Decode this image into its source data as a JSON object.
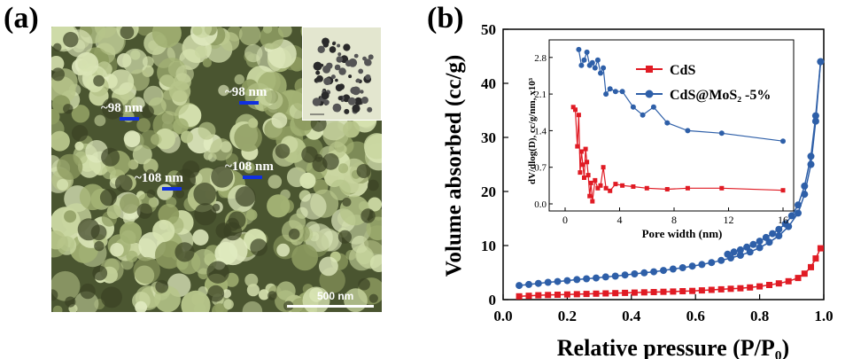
{
  "panel_a": {
    "label": "(a)",
    "annotations": [
      "~98 nm",
      "~98 nm",
      "~108 nm",
      "~108 nm"
    ],
    "scale_bar": "500 nm",
    "image_tint": "#c9d6a0"
  },
  "panel_b": {
    "label": "(b)"
  },
  "chart_data": [
    {
      "type": "line",
      "xlabel": "Relative pressure (P/P₀)",
      "ylabel": "Volume absorbed (cc/g)",
      "xlim": [
        0.0,
        1.0
      ],
      "ylim": [
        0,
        50
      ],
      "xticks": [
        "0.0",
        "0.2",
        "0.4",
        "0.6",
        "0.8",
        "1.0"
      ],
      "yticks": [
        "0",
        "10",
        "20",
        "30",
        "40",
        "50"
      ],
      "legend_position": "top-right of inset",
      "series": [
        {
          "name": "CdS",
          "color": "#e01b24",
          "marker": "square",
          "points": [
            [
              0.05,
              0.6
            ],
            [
              0.08,
              0.7
            ],
            [
              0.11,
              0.8
            ],
            [
              0.14,
              0.85
            ],
            [
              0.17,
              0.9
            ],
            [
              0.2,
              0.95
            ],
            [
              0.23,
              1.0
            ],
            [
              0.26,
              1.05
            ],
            [
              0.29,
              1.1
            ],
            [
              0.32,
              1.15
            ],
            [
              0.35,
              1.2
            ],
            [
              0.38,
              1.25
            ],
            [
              0.41,
              1.3
            ],
            [
              0.44,
              1.35
            ],
            [
              0.47,
              1.4
            ],
            [
              0.5,
              1.45
            ],
            [
              0.53,
              1.5
            ],
            [
              0.56,
              1.55
            ],
            [
              0.59,
              1.6
            ],
            [
              0.62,
              1.7
            ],
            [
              0.65,
              1.8
            ],
            [
              0.68,
              1.9
            ],
            [
              0.71,
              2.0
            ],
            [
              0.74,
              2.1
            ],
            [
              0.77,
              2.25
            ],
            [
              0.8,
              2.45
            ],
            [
              0.83,
              2.7
            ],
            [
              0.86,
              3.0
            ],
            [
              0.89,
              3.4
            ],
            [
              0.92,
              4.0
            ],
            [
              0.94,
              4.8
            ],
            [
              0.96,
              6.0
            ],
            [
              0.975,
              7.6
            ],
            [
              0.99,
              9.5
            ]
          ]
        },
        {
          "name": "CdS@MoS₂ -5%",
          "color": "#2e5fa8",
          "marker": "circle",
          "points": [
            [
              0.05,
              2.6
            ],
            [
              0.08,
              2.8
            ],
            [
              0.11,
              3.0
            ],
            [
              0.14,
              3.2
            ],
            [
              0.17,
              3.35
            ],
            [
              0.2,
              3.5
            ],
            [
              0.23,
              3.7
            ],
            [
              0.26,
              3.85
            ],
            [
              0.29,
              4.0
            ],
            [
              0.32,
              4.2
            ],
            [
              0.35,
              4.35
            ],
            [
              0.38,
              4.55
            ],
            [
              0.41,
              4.75
            ],
            [
              0.44,
              4.95
            ],
            [
              0.47,
              5.15
            ],
            [
              0.5,
              5.4
            ],
            [
              0.53,
              5.65
            ],
            [
              0.56,
              5.9
            ],
            [
              0.59,
              6.2
            ],
            [
              0.62,
              6.5
            ],
            [
              0.65,
              6.85
            ],
            [
              0.68,
              7.25
            ],
            [
              0.71,
              7.7
            ],
            [
              0.74,
              8.2
            ],
            [
              0.77,
              8.8
            ],
            [
              0.8,
              9.6
            ],
            [
              0.83,
              10.6
            ],
            [
              0.86,
              11.8
            ],
            [
              0.89,
              13.5
            ],
            [
              0.92,
              16.0
            ],
            [
              0.94,
              19.5
            ],
            [
              0.96,
              25.0
            ],
            [
              0.975,
              33.0
            ],
            [
              0.99,
              44.0
            ]
          ],
          "desorption_points": [
            [
              0.99,
              44.0
            ],
            [
              0.975,
              34.0
            ],
            [
              0.96,
              26.5
            ],
            [
              0.94,
              21.0
            ],
            [
              0.92,
              17.5
            ],
            [
              0.9,
              15.5
            ],
            [
              0.88,
              14.0
            ],
            [
              0.86,
              13.0
            ],
            [
              0.84,
              12.2
            ],
            [
              0.82,
              11.5
            ],
            [
              0.8,
              10.8
            ],
            [
              0.78,
              10.2
            ],
            [
              0.76,
              9.7
            ],
            [
              0.74,
              9.2
            ],
            [
              0.72,
              8.8
            ],
            [
              0.7,
              8.4
            ]
          ]
        }
      ]
    },
    {
      "type": "line",
      "xlabel": "Pore width (nm)",
      "ylabel": "dV/dlog(D), cc/g/nm, x10³",
      "xlim": [
        0,
        16
      ],
      "ylim": [
        0.0,
        3.0
      ],
      "xticks": [
        "0",
        "4",
        "8",
        "12",
        "16"
      ],
      "yticks": [
        "0.0",
        "0.7",
        "1.4",
        "2.1",
        "2.8"
      ],
      "series": [
        {
          "name": "CdS",
          "color": "#e01b24",
          "marker": "square",
          "points": [
            [
              0.6,
              1.85
            ],
            [
              0.75,
              1.8
            ],
            [
              0.9,
              1.1
            ],
            [
              1.0,
              1.7
            ],
            [
              1.1,
              0.6
            ],
            [
              1.2,
              1.0
            ],
            [
              1.3,
              0.75
            ],
            [
              1.4,
              0.5
            ],
            [
              1.5,
              1.05
            ],
            [
              1.6,
              0.8
            ],
            [
              1.7,
              0.55
            ],
            [
              1.8,
              0.15
            ],
            [
              1.9,
              0.4
            ],
            [
              2.0,
              0.05
            ],
            [
              2.2,
              0.45
            ],
            [
              2.4,
              0.3
            ],
            [
              2.6,
              0.35
            ],
            [
              2.8,
              0.7
            ],
            [
              3.0,
              0.3
            ],
            [
              3.3,
              0.25
            ],
            [
              3.7,
              0.38
            ],
            [
              4.2,
              0.35
            ],
            [
              5.0,
              0.33
            ],
            [
              6.0,
              0.3
            ],
            [
              7.5,
              0.28
            ],
            [
              9.0,
              0.3
            ],
            [
              11.5,
              0.3
            ],
            [
              16.0,
              0.26
            ]
          ]
        },
        {
          "name": "CdS@MoS₂ -5%",
          "color": "#2e5fa8",
          "marker": "circle",
          "points": [
            [
              1.0,
              2.95
            ],
            [
              1.2,
              2.65
            ],
            [
              1.4,
              2.75
            ],
            [
              1.6,
              2.9
            ],
            [
              1.8,
              2.65
            ],
            [
              2.0,
              2.7
            ],
            [
              2.2,
              2.6
            ],
            [
              2.4,
              2.75
            ],
            [
              2.6,
              2.5
            ],
            [
              2.8,
              2.6
            ],
            [
              3.0,
              2.1
            ],
            [
              3.3,
              2.2
            ],
            [
              3.7,
              2.15
            ],
            [
              4.2,
              2.15
            ],
            [
              5.0,
              1.85
            ],
            [
              5.7,
              1.7
            ],
            [
              6.5,
              1.85
            ],
            [
              7.5,
              1.55
            ],
            [
              9.0,
              1.4
            ],
            [
              11.5,
              1.35
            ],
            [
              16.0,
              1.2
            ]
          ]
        }
      ]
    }
  ]
}
